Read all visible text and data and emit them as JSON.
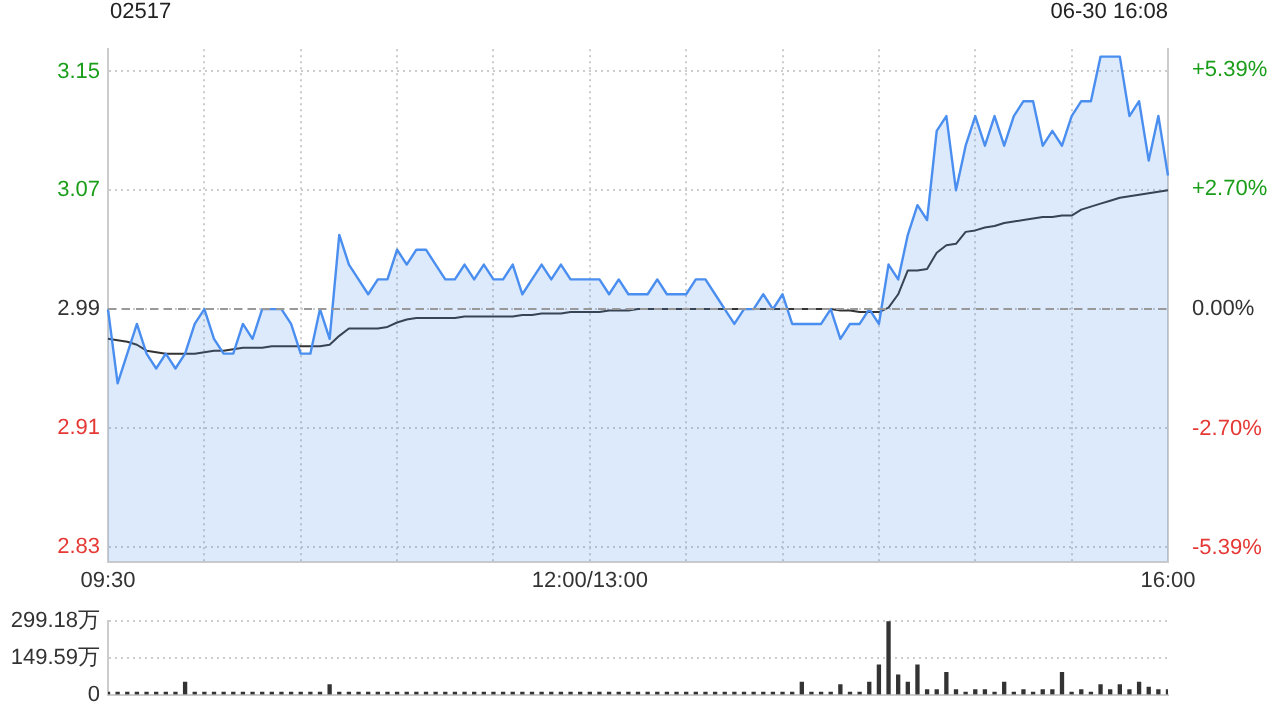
{
  "chart_data": [
    {
      "type": "line",
      "title": "02517",
      "annotations": [
        "06-30 16:08"
      ],
      "categories": [
        "09:30",
        null,
        null,
        null,
        null,
        null,
        null,
        null,
        null,
        null,
        null,
        null,
        null,
        null,
        null,
        null,
        null,
        null,
        null,
        null,
        null,
        null,
        null,
        null,
        null,
        null,
        null,
        null,
        null,
        null,
        null,
        null,
        null,
        null,
        null,
        null,
        null,
        null,
        null,
        null,
        null,
        null,
        null,
        null,
        null,
        null,
        null,
        null,
        null,
        null,
        "12:00/13:00",
        null,
        null,
        null,
        null,
        null,
        null,
        null,
        null,
        null,
        null,
        null,
        null,
        null,
        null,
        null,
        null,
        null,
        null,
        null,
        null,
        null,
        null,
        null,
        null,
        null,
        null,
        null,
        null,
        null,
        null,
        null,
        null,
        null,
        null,
        null,
        null,
        null,
        null,
        null,
        null,
        null,
        null,
        null,
        null,
        null,
        null,
        null,
        null,
        null,
        null,
        null,
        null,
        null,
        null,
        null,
        null,
        null,
        null,
        null,
        "16:00"
      ],
      "ylim": [
        2.82,
        3.165
      ],
      "yticks": [
        2.83,
        2.91,
        2.99,
        3.07,
        3.15
      ],
      "y2lim": [
        -5.69,
        5.85
      ],
      "y2ticks": [
        {
          "value": -5.39,
          "label": "-5.39%"
        },
        {
          "value": -2.7,
          "label": "-2.70%"
        },
        {
          "value": 0,
          "label": "0.00%"
        },
        {
          "value": 2.7,
          "label": "+2.70%"
        },
        {
          "value": 5.39,
          "label": "+5.39%"
        }
      ],
      "ref_lines": [
        {
          "axis": "y",
          "value": 2.99,
          "color": "#999999",
          "line_style": "dashed"
        }
      ],
      "grid": true,
      "legend": false,
      "marker": "none",
      "series": [
        {
          "type": "area",
          "color": "#4a8ef0",
          "values": [
            2.99,
            2.94,
            2.96,
            2.98,
            2.96,
            2.95,
            2.96,
            2.95,
            2.96,
            2.98,
            2.99,
            2.97,
            2.96,
            2.96,
            2.98,
            2.97,
            2.99,
            2.99,
            2.99,
            2.98,
            2.96,
            2.96,
            2.99,
            2.97,
            3.04,
            3.02,
            3.01,
            3.0,
            3.01,
            3.01,
            3.03,
            3.02,
            3.03,
            3.03,
            3.02,
            3.01,
            3.01,
            3.02,
            3.01,
            3.02,
            3.01,
            3.01,
            3.02,
            3.0,
            3.01,
            3.02,
            3.01,
            3.02,
            3.01,
            3.01,
            3.01,
            3.01,
            3.0,
            3.01,
            3.0,
            3.0,
            3.0,
            3.01,
            3.0,
            3.0,
            3.0,
            3.01,
            3.01,
            3.0,
            2.99,
            2.98,
            2.99,
            2.99,
            3.0,
            2.99,
            3.0,
            2.98,
            2.98,
            2.98,
            2.98,
            2.99,
            2.97,
            2.98,
            2.98,
            2.99,
            2.98,
            3.02,
            3.01,
            3.04,
            3.06,
            3.05,
            3.11,
            3.12,
            3.07,
            3.1,
            3.12,
            3.1,
            3.12,
            3.1,
            3.12,
            3.13,
            3.13,
            3.1,
            3.11,
            3.1,
            3.12,
            3.13,
            3.13,
            3.16,
            3.16,
            3.16,
            3.12,
            3.13,
            3.09,
            3.12,
            3.08
          ]
        },
        {
          "type": "line",
          "color": "#333333",
          "values": [
            2.97,
            2.969,
            2.968,
            2.966,
            2.962,
            2.961,
            2.96,
            2.96,
            2.96,
            2.96,
            2.961,
            2.962,
            2.962,
            2.963,
            2.964,
            2.964,
            2.964,
            2.965,
            2.965,
            2.965,
            2.965,
            2.965,
            2.965,
            2.966,
            2.972,
            2.977,
            2.977,
            2.977,
            2.977,
            2.978,
            2.981,
            2.983,
            2.984,
            2.984,
            2.984,
            2.984,
            2.984,
            2.985,
            2.985,
            2.985,
            2.985,
            2.985,
            2.985,
            2.986,
            2.986,
            2.987,
            2.987,
            2.987,
            2.988,
            2.988,
            2.988,
            2.988,
            2.989,
            2.989,
            2.989,
            2.99,
            2.99,
            2.99,
            2.99,
            2.99,
            2.99,
            2.99,
            2.99,
            2.99,
            2.99,
            2.99,
            2.99,
            2.99,
            2.99,
            2.99,
            2.99,
            2.99,
            2.99,
            2.99,
            2.99,
            2.99,
            2.989,
            2.989,
            2.988,
            2.988,
            2.988,
            2.991,
            3.0,
            3.016,
            3.016,
            3.017,
            3.028,
            3.033,
            3.034,
            3.042,
            3.043,
            3.045,
            3.046,
            3.048,
            3.049,
            3.05,
            3.051,
            3.052,
            3.052,
            3.053,
            3.053,
            3.057,
            3.059,
            3.061,
            3.063,
            3.065,
            3.066,
            3.067,
            3.068,
            3.069,
            3.07
          ]
        }
      ]
    },
    {
      "type": "bar",
      "categories": [
        null,
        null,
        null,
        null,
        null,
        null,
        null,
        null,
        null,
        null,
        null,
        null,
        null,
        null,
        null,
        null,
        null,
        null,
        null,
        null,
        null,
        null,
        null,
        null,
        null,
        null,
        null,
        null,
        null,
        null,
        null,
        null,
        null,
        null,
        null,
        null,
        null,
        null,
        null,
        null,
        null,
        null,
        null,
        null,
        null,
        null,
        null,
        null,
        null,
        null,
        null,
        null,
        null,
        null,
        null,
        null,
        null,
        null,
        null,
        null,
        null,
        null,
        null,
        null,
        null,
        null,
        null,
        null,
        null,
        null,
        null,
        null,
        null,
        null,
        null,
        null,
        null,
        null,
        null,
        null,
        null,
        null,
        null,
        null,
        null,
        null,
        null,
        null,
        null,
        null,
        null,
        null,
        null,
        null,
        null,
        null,
        null,
        null,
        null,
        null,
        null,
        null,
        null,
        null,
        null,
        null,
        null,
        null,
        null,
        null,
        null
      ],
      "ylim": [
        0,
        299.18
      ],
      "yticks": [
        0,
        {
          "value": 149.59,
          "label": "149.59万"
        },
        {
          "value": 299.18,
          "label": "299.18万"
        }
      ],
      "tick_labels": "y",
      "grid": "y",
      "legend": false,
      "series": [
        {
          "color": "#333333",
          "values": [
            10,
            10,
            10,
            10,
            10,
            10,
            10,
            10,
            50,
            10,
            10,
            10,
            10,
            10,
            10,
            10,
            10,
            10,
            10,
            10,
            10,
            10,
            10,
            40,
            10,
            10,
            10,
            10,
            10,
            10,
            10,
            10,
            10,
            10,
            10,
            10,
            10,
            10,
            10,
            10,
            10,
            10,
            10,
            10,
            10,
            10,
            10,
            10,
            10,
            10,
            10,
            10,
            10,
            10,
            10,
            10,
            10,
            10,
            10,
            10,
            10,
            10,
            10,
            10,
            10,
            10,
            10,
            10,
            10,
            10,
            10,
            10,
            50,
            10,
            10,
            10,
            40,
            10,
            10,
            50,
            120,
            299.18,
            80,
            50,
            120,
            20,
            20,
            90,
            20,
            10,
            20,
            20,
            10,
            50,
            10,
            20,
            10,
            20,
            20,
            90,
            10,
            20,
            10,
            40,
            20,
            40,
            20,
            50,
            30,
            20,
            20
          ]
        }
      ]
    }
  ]
}
